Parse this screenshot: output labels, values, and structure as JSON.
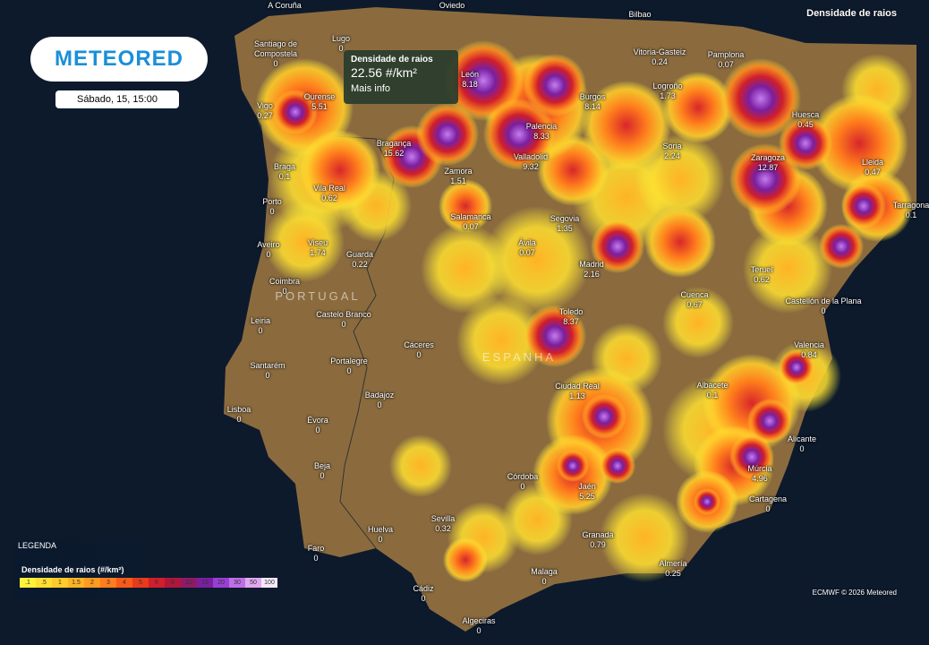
{
  "header": {
    "logo": "METEORED",
    "datetime": "Sábado, 15, 15:00",
    "layer": "Densidade de raios"
  },
  "tooltip": {
    "title": "Densidade de raios",
    "value": "22.56 #/km²",
    "link": "Mais info"
  },
  "top_labels": [
    "A Coruña",
    "Oviedo",
    "Bilbao"
  ],
  "countries": [
    "PORTUGAL",
    "ESPANHA"
  ],
  "cities": [
    {
      "name": "Santiago de Compostela",
      "value": "0"
    },
    {
      "name": "Lugo",
      "value": "0"
    },
    {
      "name": "Ourense",
      "value": "5.51"
    },
    {
      "name": "Vigo",
      "value": "0.27"
    },
    {
      "name": "León",
      "value": "8.18"
    },
    {
      "name": "Vitoria-Gasteiz",
      "value": "0.24"
    },
    {
      "name": "Pamplona",
      "value": "0.07"
    },
    {
      "name": "Burgos",
      "value": "8.14"
    },
    {
      "name": "Logroño",
      "value": "1.73"
    },
    {
      "name": "Palencia",
      "value": "8.33"
    },
    {
      "name": "Bragança",
      "value": "15.62"
    },
    {
      "name": "Braga",
      "value": "0.1"
    },
    {
      "name": "Valladolid",
      "value": "9.32"
    },
    {
      "name": "Soria",
      "value": "2.24"
    },
    {
      "name": "Huesca",
      "value": "0.45"
    },
    {
      "name": "Zaragoza",
      "value": "12.87"
    },
    {
      "name": "Lleida",
      "value": "0.47"
    },
    {
      "name": "Tarragona",
      "value": "0.1"
    },
    {
      "name": "Zamora",
      "value": "1.51"
    },
    {
      "name": "Vila Real",
      "value": "0.62"
    },
    {
      "name": "Porto",
      "value": "0"
    },
    {
      "name": "Salamanca",
      "value": "0.07"
    },
    {
      "name": "Segovia",
      "value": "1.35"
    },
    {
      "name": "Aveiro",
      "value": "0"
    },
    {
      "name": "Viseu",
      "value": "1.74"
    },
    {
      "name": "Guarda",
      "value": "0.22"
    },
    {
      "name": "Ávila",
      "value": "0.07"
    },
    {
      "name": "Madrid",
      "value": "2.16"
    },
    {
      "name": "Teruel",
      "value": "0.62"
    },
    {
      "name": "Coimbra",
      "value": "0"
    },
    {
      "name": "Cuenca",
      "value": "0.67"
    },
    {
      "name": "Castellón de la Plana",
      "value": "0"
    },
    {
      "name": "Castelo Branco",
      "value": "0"
    },
    {
      "name": "Toledo",
      "value": "8.37"
    },
    {
      "name": "Leiria",
      "value": "0"
    },
    {
      "name": "Cáceres",
      "value": "0"
    },
    {
      "name": "Valencia",
      "value": "0.84"
    },
    {
      "name": "Santarém",
      "value": "0"
    },
    {
      "name": "Portalegre",
      "value": "0"
    },
    {
      "name": "Ciudad Real",
      "value": "1.13"
    },
    {
      "name": "Albacete",
      "value": "0.1"
    },
    {
      "name": "Lisboa",
      "value": "0"
    },
    {
      "name": "Badajoz",
      "value": "0"
    },
    {
      "name": "Évora",
      "value": "0"
    },
    {
      "name": "Alicante",
      "value": "0"
    },
    {
      "name": "Beja",
      "value": "0"
    },
    {
      "name": "Córdoba",
      "value": "0"
    },
    {
      "name": "Jaén",
      "value": "5.25"
    },
    {
      "name": "Múrcia",
      "value": "4.96"
    },
    {
      "name": "Cartagena",
      "value": "0"
    },
    {
      "name": "Huelva",
      "value": "0"
    },
    {
      "name": "Sevilla",
      "value": "0.32"
    },
    {
      "name": "Granada",
      "value": "0.79"
    },
    {
      "name": "Faro",
      "value": "0"
    },
    {
      "name": "Almería",
      "value": "0.25"
    },
    {
      "name": "Malaga",
      "value": "0"
    },
    {
      "name": "Cádiz",
      "value": "0"
    },
    {
      "name": "Algeciras",
      "value": "0"
    }
  ],
  "legend": {
    "title": "LEGENDA",
    "subtitle": "Densidade de raios (#/km²)",
    "labels": [
      ".1",
      ".5",
      "1",
      "1.5",
      "2",
      "3",
      "4",
      "5",
      "6",
      "8",
      "10",
      "15",
      "20",
      "30",
      "50",
      "100"
    ],
    "colors": [
      "#fff23a",
      "#ffe030",
      "#ffcb2a",
      "#ffb324",
      "#ff9a20",
      "#ff7d1c",
      "#f85a1a",
      "#e83a1c",
      "#d01e2a",
      "#b0163c",
      "#8f1a66",
      "#7a1fa0",
      "#9a3ed4",
      "#c06ee6",
      "#dfa8f0",
      "#f4e8fa"
    ]
  },
  "footer": "ECMWF © 2026 Meteored"
}
